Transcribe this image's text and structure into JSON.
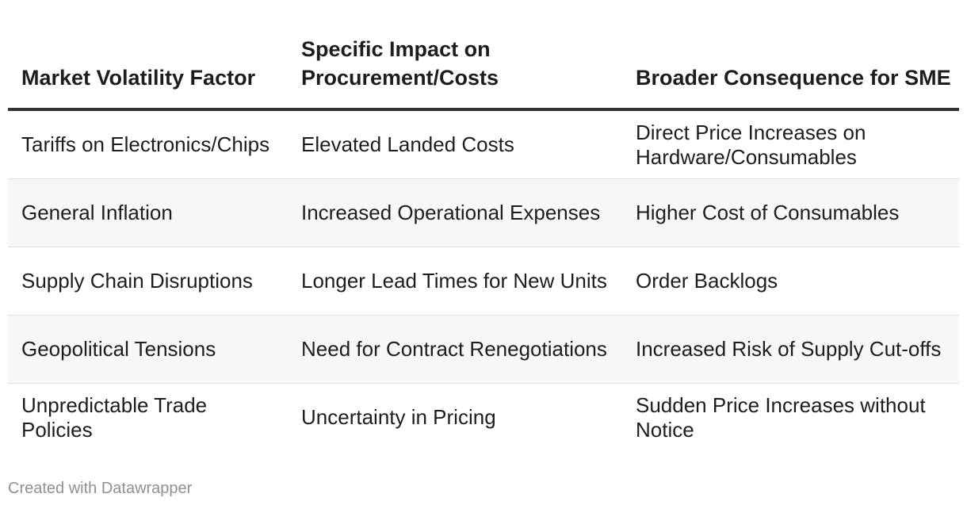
{
  "table": {
    "headers": [
      "Market Volatility Factor",
      "Specific Impact on Procurement/Costs",
      "Broader Consequence for SME"
    ],
    "rows": [
      [
        "Tariffs on Electronics/Chips",
        "Elevated Landed Costs",
        "Direct Price Increases on Hardware/Consumables"
      ],
      [
        "General Inflation",
        "Increased Operational Expenses",
        "Higher Cost of Consumables"
      ],
      [
        "Supply Chain Disruptions",
        "Longer Lead Times for New Units",
        "Order Backlogs"
      ],
      [
        "Geopolitical Tensions",
        "Need for Contract Renegotiations",
        "Increased Risk of Supply Cut-offs"
      ],
      [
        "Unpredictable Trade Policies",
        "Uncertainty in Pricing",
        "Sudden Price Increases without Notice"
      ]
    ]
  },
  "footer": {
    "credit": "Created with Datawrapper"
  }
}
